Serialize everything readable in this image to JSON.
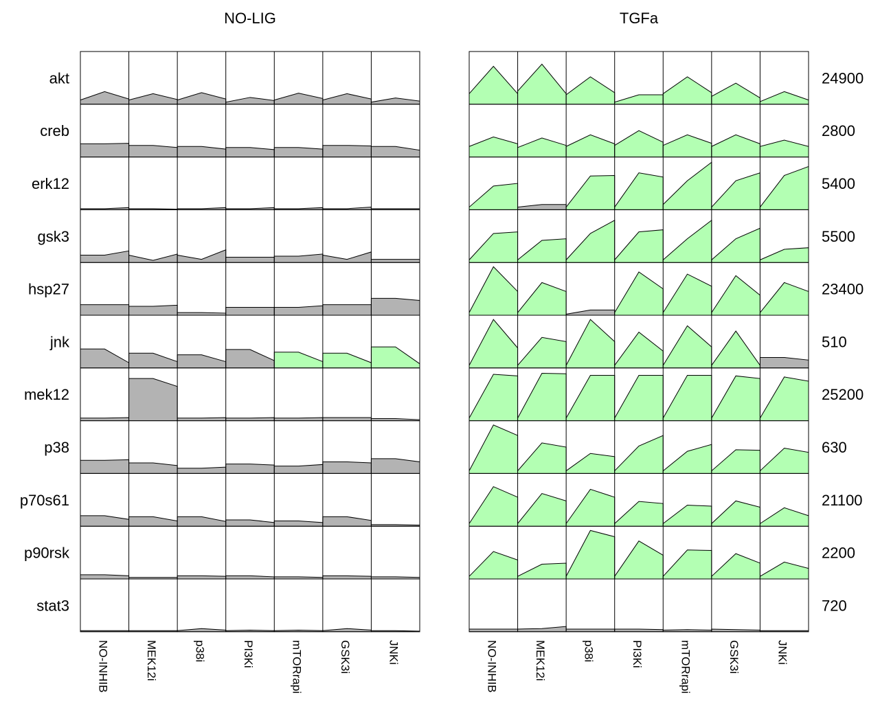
{
  "chart_data": {
    "type": "area",
    "title": "",
    "panels": [
      {
        "name": "NO-LIG"
      },
      {
        "name": "TGFa"
      }
    ],
    "rows": [
      "akt",
      "creb",
      "erk12",
      "gsk3",
      "hsp27",
      "jnk",
      "mek12",
      "p38",
      "p70s61",
      "p90rsk",
      "stat3"
    ],
    "columns": [
      "NO-INHIB",
      "MEK12i",
      "p38i",
      "PI3Ki",
      "mTORrapi",
      "GSK3i",
      "JNKi"
    ],
    "row_max": [
      "24900",
      "2800",
      "5400",
      "5500",
      "23400",
      "510",
      "25200",
      "630",
      "21100",
      "2200",
      "720"
    ],
    "colors": {
      "gray": "#b3b3b3",
      "green": "#b3ffb3",
      "line": "#000000"
    },
    "x": [
      0,
      0.5,
      1
    ],
    "cells": [
      [
        [
          [
            0.08,
            0.24,
            0.1
          ],
          [
            0.08,
            0.2,
            0.09
          ],
          [
            0.08,
            0.22,
            0.1
          ],
          [
            0.04,
            0.13,
            0.07
          ],
          [
            0.08,
            0.21,
            0.11
          ],
          [
            0.08,
            0.2,
            0.1
          ],
          [
            0.04,
            0.12,
            0.06
          ]
        ],
        [
          [
            0.25,
            0.25,
            0.26
          ],
          [
            0.22,
            0.22,
            0.18
          ],
          [
            0.2,
            0.2,
            0.15
          ],
          [
            0.18,
            0.18,
            0.14
          ],
          [
            0.18,
            0.18,
            0.15
          ],
          [
            0.22,
            0.22,
            0.21
          ],
          [
            0.2,
            0.2,
            0.13
          ]
        ],
        [
          [
            0.02,
            0.02,
            0.04
          ],
          [
            0.02,
            0.02,
            0.01
          ],
          [
            0.02,
            0.02,
            0.04
          ],
          [
            0.02,
            0.02,
            0.04
          ],
          [
            0.02,
            0.02,
            0.04
          ],
          [
            0.02,
            0.02,
            0.05
          ],
          [
            0.02,
            0.02,
            0.02
          ]
        ],
        [
          [
            0.14,
            0.14,
            0.22
          ],
          [
            0.14,
            0.04,
            0.16
          ],
          [
            0.14,
            0.06,
            0.24
          ],
          [
            0.1,
            0.1,
            0.1
          ],
          [
            0.12,
            0.12,
            0.16
          ],
          [
            0.14,
            0.06,
            0.2
          ],
          [
            0.06,
            0.06,
            0.06
          ]
        ],
        [
          [
            0.2,
            0.2,
            0.2
          ],
          [
            0.17,
            0.17,
            0.19
          ],
          [
            0.05,
            0.05,
            0.04
          ],
          [
            0.15,
            0.15,
            0.15
          ],
          [
            0.15,
            0.15,
            0.18
          ],
          [
            0.2,
            0.2,
            0.2
          ],
          [
            0.32,
            0.32,
            0.28
          ]
        ],
        [
          [
            0.36,
            0.36,
            0.1
          ],
          [
            0.28,
            0.28,
            0.12
          ],
          [
            0.25,
            0.25,
            0.12
          ],
          [
            0.35,
            0.35,
            0.14
          ],
          [
            0.3,
            0.3,
            0.12
          ],
          [
            0.28,
            0.28,
            0.1
          ],
          [
            0.4,
            0.4,
            0.08
          ]
        ],
        [
          [
            0.05,
            0.05,
            0.06
          ],
          [
            0.8,
            0.8,
            0.65
          ],
          [
            0.05,
            0.05,
            0.06
          ],
          [
            0.05,
            0.05,
            0.06
          ],
          [
            0.05,
            0.05,
            0.06
          ],
          [
            0.06,
            0.06,
            0.06
          ],
          [
            0.04,
            0.04,
            0.02
          ]
        ],
        [
          [
            0.25,
            0.25,
            0.26
          ],
          [
            0.2,
            0.2,
            0.15
          ],
          [
            0.1,
            0.1,
            0.12
          ],
          [
            0.18,
            0.18,
            0.16
          ],
          [
            0.14,
            0.14,
            0.17
          ],
          [
            0.22,
            0.22,
            0.2
          ],
          [
            0.28,
            0.28,
            0.22
          ]
        ],
        [
          [
            0.2,
            0.2,
            0.13
          ],
          [
            0.18,
            0.18,
            0.1
          ],
          [
            0.18,
            0.18,
            0.09
          ],
          [
            0.12,
            0.12,
            0.07
          ],
          [
            0.1,
            0.1,
            0.07
          ],
          [
            0.18,
            0.18,
            0.11
          ],
          [
            0.03,
            0.03,
            0.02
          ]
        ],
        [
          [
            0.08,
            0.08,
            0.06
          ],
          [
            0.03,
            0.03,
            0.03
          ],
          [
            0.06,
            0.06,
            0.05
          ],
          [
            0.06,
            0.06,
            0.04
          ],
          [
            0.04,
            0.04,
            0.03
          ],
          [
            0.06,
            0.06,
            0.05
          ],
          [
            0.04,
            0.04,
            0.03
          ]
        ],
        [
          [
            0.02,
            0.02,
            0.02
          ],
          [
            0.02,
            0.02,
            0.02
          ],
          [
            0.02,
            0.06,
            0.03
          ],
          [
            0.02,
            0.03,
            0.02
          ],
          [
            0.02,
            0.03,
            0.02
          ],
          [
            0.02,
            0.06,
            0.03
          ],
          [
            0.02,
            0.02,
            0.01
          ]
        ]
      ],
      [
        [
          [
            0.2,
            0.72,
            0.2
          ],
          [
            0.25,
            0.76,
            0.2
          ],
          [
            0.18,
            0.52,
            0.22
          ],
          [
            0.04,
            0.18,
            0.18
          ],
          [
            0.2,
            0.52,
            0.22
          ],
          [
            0.15,
            0.4,
            0.12
          ],
          [
            0.05,
            0.24,
            0.08
          ]
        ],
        [
          [
            0.2,
            0.38,
            0.25
          ],
          [
            0.18,
            0.36,
            0.22
          ],
          [
            0.2,
            0.42,
            0.25
          ],
          [
            0.22,
            0.5,
            0.28
          ],
          [
            0.22,
            0.42,
            0.26
          ],
          [
            0.2,
            0.42,
            0.25
          ],
          [
            0.2,
            0.32,
            0.2
          ]
        ],
        [
          [
            0.05,
            0.45,
            0.5
          ],
          [
            0.05,
            0.1,
            0.1
          ],
          [
            0.05,
            0.64,
            0.65
          ],
          [
            0.05,
            0.7,
            0.62
          ],
          [
            0.1,
            0.55,
            0.9
          ],
          [
            0.05,
            0.55,
            0.7
          ],
          [
            0.05,
            0.65,
            0.82
          ]
        ],
        [
          [
            0.05,
            0.55,
            0.58
          ],
          [
            0.05,
            0.42,
            0.45
          ],
          [
            0.05,
            0.55,
            0.8
          ],
          [
            0.05,
            0.58,
            0.62
          ],
          [
            0.05,
            0.45,
            0.8
          ],
          [
            0.05,
            0.45,
            0.65
          ],
          [
            0.05,
            0.25,
            0.28
          ]
        ],
        [
          [
            0.05,
            0.92,
            0.45
          ],
          [
            0.05,
            0.62,
            0.45
          ],
          [
            0.02,
            0.1,
            0.1
          ],
          [
            0.05,
            0.82,
            0.5
          ],
          [
            0.05,
            0.78,
            0.55
          ],
          [
            0.05,
            0.75,
            0.38
          ],
          [
            0.05,
            0.62,
            0.45
          ]
        ],
        [
          [
            0.05,
            0.92,
            0.38
          ],
          [
            0.05,
            0.58,
            0.5
          ],
          [
            0.05,
            0.92,
            0.5
          ],
          [
            0.05,
            0.68,
            0.32
          ],
          [
            0.05,
            0.8,
            0.4
          ],
          [
            0.05,
            0.7,
            0.05
          ],
          [
            0.2,
            0.2,
            0.15
          ]
        ],
        [
          [
            0.05,
            0.88,
            0.85
          ],
          [
            0.05,
            0.9,
            0.89
          ],
          [
            0.05,
            0.86,
            0.86
          ],
          [
            0.05,
            0.86,
            0.86
          ],
          [
            0.05,
            0.86,
            0.86
          ],
          [
            0.05,
            0.85,
            0.8
          ],
          [
            0.05,
            0.83,
            0.75
          ]
        ],
        [
          [
            0.05,
            0.92,
            0.72
          ],
          [
            0.05,
            0.58,
            0.5
          ],
          [
            0.05,
            0.38,
            0.32
          ],
          [
            0.05,
            0.52,
            0.72
          ],
          [
            0.05,
            0.42,
            0.55
          ],
          [
            0.05,
            0.45,
            0.44
          ],
          [
            0.05,
            0.48,
            0.4
          ]
        ],
        [
          [
            0.05,
            0.75,
            0.55
          ],
          [
            0.05,
            0.62,
            0.48
          ],
          [
            0.05,
            0.7,
            0.55
          ],
          [
            0.05,
            0.47,
            0.43
          ],
          [
            0.05,
            0.4,
            0.38
          ],
          [
            0.05,
            0.48,
            0.36
          ],
          [
            0.05,
            0.35,
            0.2
          ]
        ],
        [
          [
            0.05,
            0.52,
            0.36
          ],
          [
            0.05,
            0.28,
            0.3
          ],
          [
            0.05,
            0.92,
            0.8
          ],
          [
            0.05,
            0.72,
            0.45
          ],
          [
            0.05,
            0.55,
            0.54
          ],
          [
            0.05,
            0.48,
            0.3
          ],
          [
            0.05,
            0.32,
            0.2
          ]
        ],
        [
          [
            0.05,
            0.05,
            0.05
          ],
          [
            0.05,
            0.06,
            0.1
          ],
          [
            0.05,
            0.05,
            0.05
          ],
          [
            0.05,
            0.05,
            0.04
          ],
          [
            0.03,
            0.04,
            0.03
          ],
          [
            0.05,
            0.04,
            0.03
          ],
          [
            0.02,
            0.02,
            0.02
          ]
        ]
      ]
    ],
    "fill": [
      [
        [
          "gray",
          "gray",
          "gray",
          "gray",
          "gray",
          "gray",
          "gray"
        ],
        [
          "gray",
          "gray",
          "gray",
          "gray",
          "gray",
          "gray",
          "gray"
        ],
        [
          "gray",
          "gray",
          "gray",
          "gray",
          "gray",
          "gray",
          "gray"
        ],
        [
          "gray",
          "gray",
          "gray",
          "gray",
          "gray",
          "gray",
          "gray"
        ],
        [
          "gray",
          "gray",
          "gray",
          "gray",
          "gray",
          "gray",
          "gray"
        ],
        [
          "gray",
          "gray",
          "gray",
          "gray",
          "green",
          "green",
          "green"
        ],
        [
          "gray",
          "gray",
          "gray",
          "gray",
          "gray",
          "gray",
          "gray"
        ],
        [
          "gray",
          "gray",
          "gray",
          "gray",
          "gray",
          "gray",
          "gray"
        ],
        [
          "gray",
          "gray",
          "gray",
          "gray",
          "gray",
          "gray",
          "gray"
        ],
        [
          "gray",
          "gray",
          "gray",
          "gray",
          "gray",
          "gray",
          "gray"
        ],
        [
          "gray",
          "gray",
          "gray",
          "gray",
          "gray",
          "gray",
          "gray"
        ]
      ],
      [
        [
          "green",
          "green",
          "green",
          "green",
          "green",
          "green",
          "green"
        ],
        [
          "green",
          "green",
          "green",
          "green",
          "green",
          "green",
          "green"
        ],
        [
          "green",
          "gray",
          "green",
          "green",
          "green",
          "green",
          "green"
        ],
        [
          "green",
          "green",
          "green",
          "green",
          "green",
          "green",
          "green"
        ],
        [
          "green",
          "green",
          "gray",
          "green",
          "green",
          "green",
          "green"
        ],
        [
          "green",
          "green",
          "green",
          "green",
          "green",
          "green",
          "gray"
        ],
        [
          "green",
          "green",
          "green",
          "green",
          "green",
          "green",
          "green"
        ],
        [
          "green",
          "green",
          "green",
          "green",
          "green",
          "green",
          "green"
        ],
        [
          "green",
          "green",
          "green",
          "green",
          "green",
          "green",
          "green"
        ],
        [
          "green",
          "green",
          "green",
          "green",
          "green",
          "green",
          "green"
        ],
        [
          "gray",
          "gray",
          "gray",
          "gray",
          "gray",
          "gray",
          "gray"
        ]
      ]
    ]
  }
}
